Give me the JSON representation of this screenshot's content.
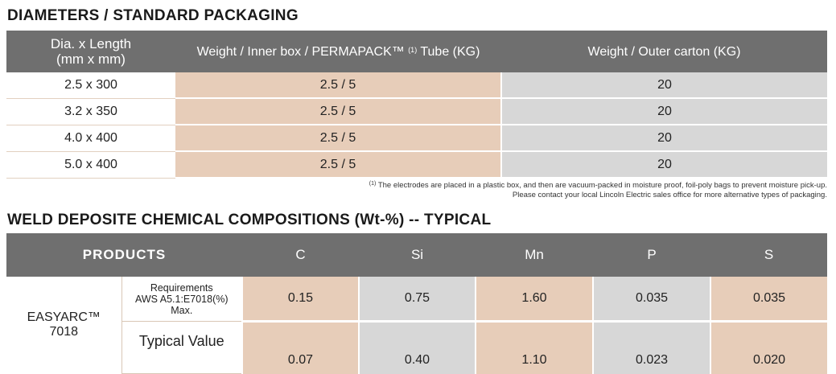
{
  "section1": {
    "title": "DIAMETERS / STANDARD PACKAGING",
    "headers": {
      "col1_line1": "Dia. x Length",
      "col1_line2": "(mm x mm)",
      "col2_pre": "Weight / Inner box /  PERMAPACK™",
      "col2_sup": "(1)",
      "col2_post": "Tube   (KG)",
      "col3": "Weight / Outer carton    (KG)"
    },
    "rows": [
      {
        "size": "2.5 x 300",
        "inner": "2.5  / 5",
        "outer": "20"
      },
      {
        "size": "3.2 x 350",
        "inner": "2.5  / 5",
        "outer": "20"
      },
      {
        "size": "4.0 x 400",
        "inner": "2.5  / 5",
        "outer": "20"
      },
      {
        "size": "5.0 x 400",
        "inner": "2.5  / 5",
        "outer": "20"
      }
    ],
    "footnote_sup": "(1)",
    "footnote_line1": "The electrodes are placed in a plastic box, and then are vacuum-packed in moisture proof, foil-poly bags to prevent moisture pick-up.",
    "footnote_line2": "Please contact your local Lincoln Electric sales office for more alternative types of packaging."
  },
  "section2": {
    "title": "WELD DEPOSITE CHEMICAL COMPOSITIONS (Wt-%) -- TYPICAL",
    "headers": {
      "products": "PRODUCTS",
      "elements": [
        "C",
        "Si",
        "Mn",
        "P",
        "S"
      ]
    },
    "product_line1": "EASYARC™",
    "product_line2": "7018",
    "req_line1": "Requirements",
    "req_line2": "AWS A5.1:E7018(%)",
    "req_line3": "Max.",
    "typical_label": "Typical Value",
    "req_values": [
      "0.15",
      "0.75",
      "1.60",
      "0.035",
      "0.035"
    ],
    "typical_values": [
      "0.07",
      "0.40",
      "1.10",
      "0.023",
      "0.020"
    ]
  }
}
